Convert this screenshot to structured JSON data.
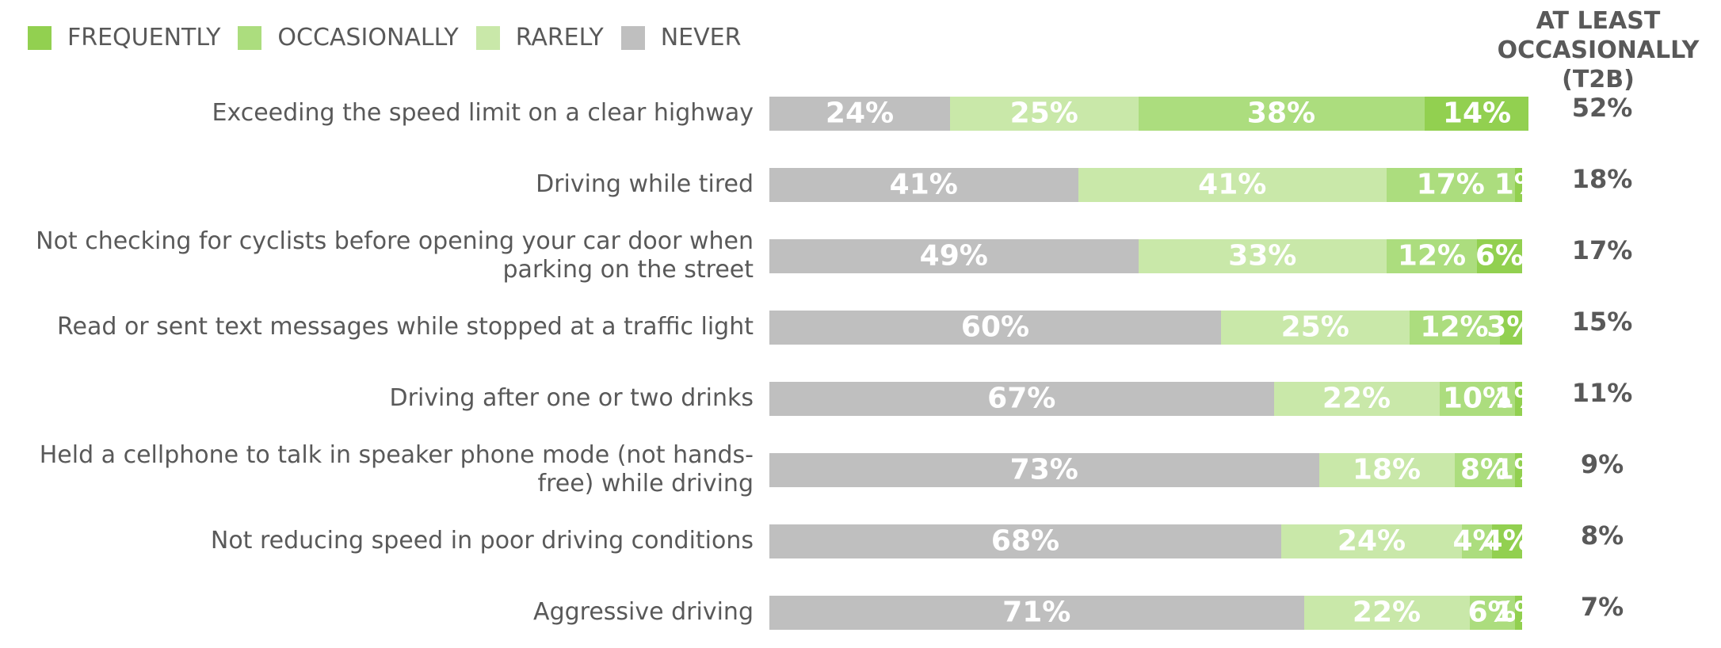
{
  "chart_data": {
    "type": "stacked-bar-horizontal",
    "categories": [
      "Exceeding the speed limit on a clear highway",
      "Driving while tired",
      "Not checking for cyclists before opening your car door when parking on the street",
      "Read or sent text messages while stopped at a traffic light",
      "Driving after one or two drinks",
      "Held a cellphone to talk in speaker phone mode (not hands-free) while driving",
      "Not reducing speed in poor driving conditions",
      "Aggressive driving"
    ],
    "series": [
      {
        "name": "FREQUENTLY",
        "color": "#92d050",
        "values": [
          14,
          1,
          6,
          3,
          1,
          1,
          4,
          1
        ],
        "value_labels": [
          "14%",
          "1%",
          "6%",
          "3%",
          "1%",
          "1%",
          "4%",
          "1%"
        ]
      },
      {
        "name": "OCCASIONALLY",
        "color": "#acdd7e",
        "values": [
          38,
          17,
          12,
          12,
          10,
          8,
          4,
          6
        ],
        "value_labels": [
          "38%",
          "17%",
          "12%",
          "12%",
          "10%",
          "8%",
          "4%",
          "6%"
        ]
      },
      {
        "name": "RARELY",
        "color": "#c9e8a9",
        "values": [
          25,
          41,
          33,
          25,
          22,
          18,
          24,
          22
        ],
        "value_labels": [
          "25%",
          "41%",
          "33%",
          "25%",
          "22%",
          "18%",
          "24%",
          "22%"
        ]
      },
      {
        "name": "NEVER",
        "color": "#bfbfbf",
        "values": [
          24,
          41,
          49,
          60,
          67,
          73,
          68,
          71
        ],
        "value_labels": [
          "24%",
          "41%",
          "49%",
          "60%",
          "67%",
          "73%",
          "68%",
          "71%"
        ]
      }
    ],
    "t2b": {
      "title": "AT LEAST OCCASIONALLY (T2B)",
      "values": [
        52,
        18,
        17,
        15,
        11,
        9,
        8,
        7
      ],
      "value_labels": [
        "52%",
        "18%",
        "17%",
        "15%",
        "11%",
        "9%",
        "8%",
        "7%"
      ]
    }
  }
}
